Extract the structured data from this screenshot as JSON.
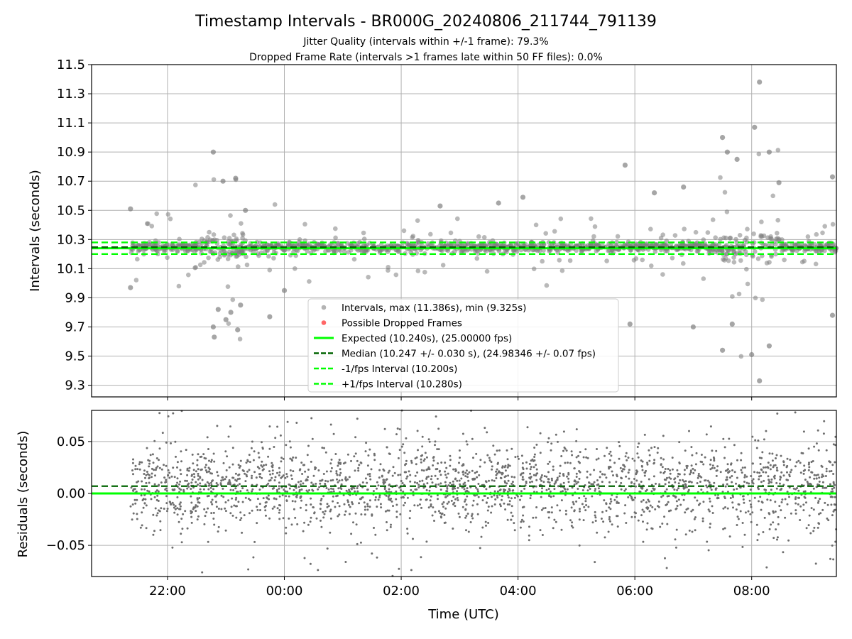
{
  "title": "Timestamp Intervals - BR000G_20240806_211744_791139",
  "subtitle_line1": "Jitter Quality (intervals within +/-1 frame): 79.3%",
  "subtitle_line2": "Dropped Frame Rate (intervals >1 frames late within 50 FF files): 0.0%",
  "colors": {
    "points": "#808080",
    "dropped": "#ff0000",
    "expected": "#00ff00",
    "median": "#006400",
    "bounds": "#00ff00",
    "grid": "#b0b0b0"
  },
  "chart_data": [
    {
      "type": "scatter",
      "panel": "top",
      "ylabel": "Intervals (seconds)",
      "ylim": [
        9.22,
        11.5
      ],
      "xlim": [
        "20:42",
        "09:27"
      ],
      "yticks": [
        "9.3",
        "9.5",
        "9.7",
        "9.9",
        "10.1",
        "10.3",
        "10.5",
        "10.7",
        "10.9",
        "11.1",
        "11.3",
        "11.5"
      ],
      "grid": true,
      "legend_position": "lower-center",
      "series": [
        {
          "name": "Intervals, max (11.386s), min (9.325s)",
          "kind": "scatter",
          "max": 11.386,
          "min": 9.325,
          "center": 10.247,
          "spread": 0.03
        },
        {
          "name": "Possible Dropped Frames",
          "kind": "scatter",
          "count": 0
        },
        {
          "name": "Expected (10.240s), (25.00000 fps)",
          "kind": "hline",
          "y": 10.24
        },
        {
          "name": "Median (10.247 +/- 0.030 s), (24.98346 +/- 0.07 fps)",
          "kind": "hline",
          "y": 10.247
        },
        {
          "name": "-1/fps Interval (10.200s)",
          "kind": "hline",
          "y": 10.2
        },
        {
          "name": "+1/fps Interval (10.280s)",
          "kind": "hline",
          "y": 10.28
        }
      ],
      "outliers": [
        {
          "x": "21:22",
          "y": 10.51
        },
        {
          "x": "21:22",
          "y": 9.97
        },
        {
          "x": "22:47",
          "y": 10.9
        },
        {
          "x": "22:48",
          "y": 9.63
        },
        {
          "x": "22:47",
          "y": 9.7
        },
        {
          "x": "22:52",
          "y": 9.82
        },
        {
          "x": "22:57",
          "y": 10.7
        },
        {
          "x": "23:00",
          "y": 9.75
        },
        {
          "x": "23:05",
          "y": 9.8
        },
        {
          "x": "23:10",
          "y": 10.72
        },
        {
          "x": "23:12",
          "y": 9.68
        },
        {
          "x": "23:15",
          "y": 9.85
        },
        {
          "x": "23:20",
          "y": 10.5
        },
        {
          "x": "23:45",
          "y": 9.77
        },
        {
          "x": "00:00",
          "y": 9.95
        },
        {
          "x": "02:40",
          "y": 10.53
        },
        {
          "x": "03:40",
          "y": 10.55
        },
        {
          "x": "04:05",
          "y": 10.59
        },
        {
          "x": "05:50",
          "y": 10.81
        },
        {
          "x": "05:55",
          "y": 9.72
        },
        {
          "x": "06:20",
          "y": 10.62
        },
        {
          "x": "06:50",
          "y": 10.66
        },
        {
          "x": "07:00",
          "y": 9.7
        },
        {
          "x": "07:30",
          "y": 11.0
        },
        {
          "x": "07:30",
          "y": 9.54
        },
        {
          "x": "07:35",
          "y": 10.9
        },
        {
          "x": "07:40",
          "y": 9.72
        },
        {
          "x": "07:45",
          "y": 10.85
        },
        {
          "x": "08:00",
          "y": 9.51
        },
        {
          "x": "08:03",
          "y": 11.07
        },
        {
          "x": "08:08",
          "y": 11.38
        },
        {
          "x": "08:08",
          "y": 9.33
        },
        {
          "x": "08:18",
          "y": 10.9
        },
        {
          "x": "08:18",
          "y": 9.57
        },
        {
          "x": "08:28",
          "y": 10.69
        },
        {
          "x": "09:23",
          "y": 10.73
        },
        {
          "x": "09:23",
          "y": 9.78
        }
      ]
    },
    {
      "type": "scatter",
      "panel": "bottom",
      "xlabel": "Time (UTC)",
      "ylabel": "Residuals (seconds)",
      "ylim": [
        -0.08,
        0.08
      ],
      "xlim": [
        "20:42",
        "09:27"
      ],
      "yticks": [
        "−0.05",
        "0.00",
        "0.05"
      ],
      "xticks": [
        "22:00",
        "00:00",
        "02:00",
        "04:00",
        "06:00",
        "08:00"
      ],
      "grid": true,
      "series": [
        {
          "name": "",
          "kind": "scatter",
          "center": 0.007,
          "spread": 0.02
        },
        {
          "name": "",
          "kind": "hline",
          "y": 0.0
        },
        {
          "name": "",
          "kind": "hline",
          "y": 0.007
        }
      ]
    }
  ]
}
